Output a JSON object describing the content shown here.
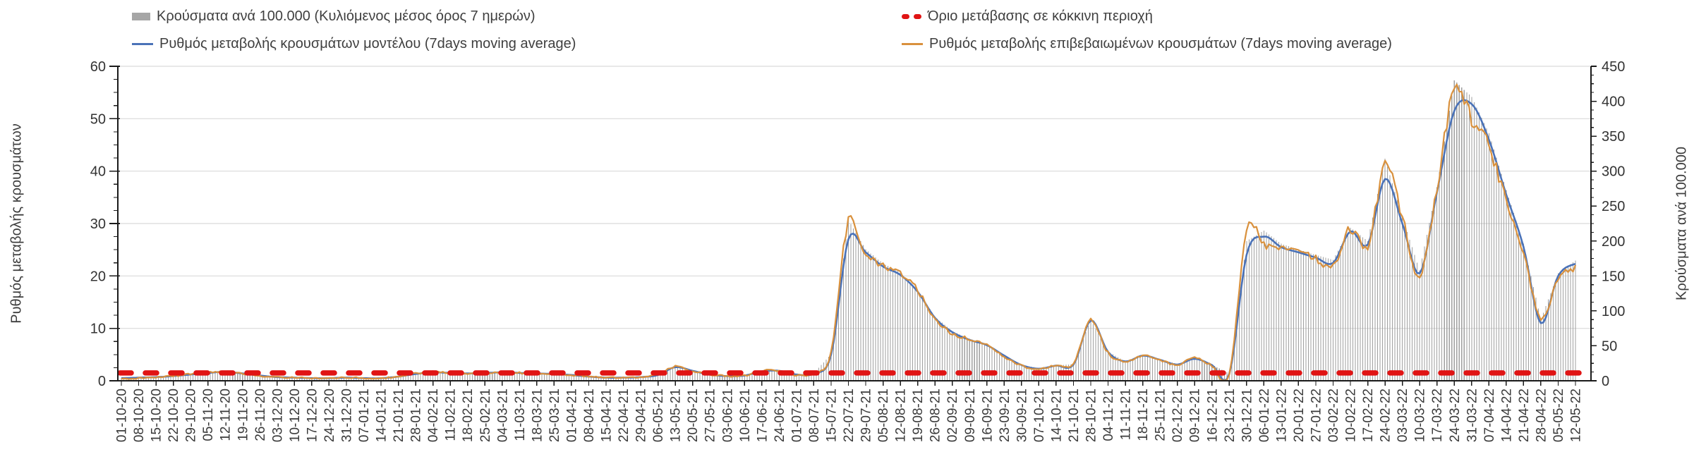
{
  "chart_data": {
    "type": "bar+line",
    "legend": [
      {
        "label": "Κρούσματα ανά 100.000 (Κυλιόμενος μέσος όρος 7 ημερών)",
        "swatch": "gray-bar",
        "color": "#a6a6a6"
      },
      {
        "label": "Όριο μετάβασης σε κόκκινη περιοχή",
        "swatch": "red-dashes",
        "color": "#e01414"
      },
      {
        "label": "Ρυθμός μεταβολής κρουσμάτων μοντέλου (7days moving average)",
        "swatch": "blue-line",
        "color": "#4a72b8"
      },
      {
        "label": "Ρυθμός μεταβολής επιβεβαιωμένων κρουσμάτων (7days moving average)",
        "swatch": "orange-line",
        "color": "#d9913d"
      }
    ],
    "ylabel_left": "Ρυθμός μεταβολής κρουσμάτων",
    "ylabel_right": "Κρούσματα ανά 100.000",
    "yleft_ticks": [
      0,
      10,
      20,
      30,
      40,
      50,
      60
    ],
    "yleft_range": [
      0,
      60
    ],
    "yright_ticks": [
      0,
      50,
      100,
      150,
      200,
      250,
      300,
      350,
      400,
      450
    ],
    "yright_range": [
      0,
      450
    ],
    "red_threshold": 1.5,
    "grid": true,
    "legend_position": "top",
    "colors": {
      "grid": "#d9d9d9",
      "bars": "#9f9f9f",
      "axis": "#1a1a1a",
      "tick_text": "#333333"
    },
    "categories": [
      "01-10-20",
      "08-10-20",
      "15-10-20",
      "22-10-20",
      "29-10-20",
      "05-11-20",
      "12-11-20",
      "19-11-20",
      "26-11-20",
      "03-12-20",
      "10-12-20",
      "17-12-20",
      "24-12-20",
      "31-12-20",
      "07-01-21",
      "14-01-21",
      "21-01-21",
      "28-01-21",
      "04-02-21",
      "11-02-21",
      "18-02-21",
      "25-02-21",
      "04-03-21",
      "11-03-21",
      "18-03-21",
      "25-03-21",
      "01-04-21",
      "08-04-21",
      "15-04-21",
      "22-04-21",
      "29-04-21",
      "06-05-21",
      "13-05-21",
      "20-05-21",
      "27-05-21",
      "03-06-21",
      "10-06-21",
      "17-06-21",
      "24-06-21",
      "01-07-21",
      "08-07-21",
      "15-07-21",
      "22-07-21",
      "29-07-21",
      "05-08-21",
      "12-08-21",
      "19-08-21",
      "26-08-21",
      "02-09-21",
      "09-09-21",
      "16-09-21",
      "23-09-21",
      "30-09-21",
      "07-10-21",
      "14-10-21",
      "21-10-21",
      "28-10-21",
      "04-11-21",
      "11-11-21",
      "18-11-21",
      "25-11-21",
      "02-12-21",
      "09-12-21",
      "16-12-21",
      "23-12-21",
      "30-12-21",
      "06-01-22",
      "13-01-22",
      "20-01-22",
      "27-01-22",
      "03-02-22",
      "10-02-22",
      "17-02-22",
      "24-02-22",
      "03-03-22",
      "10-03-22",
      "17-03-22",
      "24-03-22",
      "31-03-22",
      "07-04-22",
      "14-04-22",
      "21-04-22",
      "28-04-22",
      "05-05-22",
      "12-05-22"
    ],
    "series": [
      {
        "name": "incidence_per_100k",
        "axis": "right",
        "type": "bar",
        "values": [
          4,
          5,
          5,
          7,
          9,
          11,
          13,
          11,
          8,
          6,
          5,
          4,
          4,
          5,
          4,
          4,
          6,
          10,
          12,
          11,
          11,
          11,
          12,
          11,
          11,
          10,
          8,
          6,
          5,
          5,
          5,
          8,
          20,
          14,
          9,
          7,
          8,
          14,
          14,
          9,
          11,
          38,
          230,
          188,
          168,
          155,
          130,
          92,
          71,
          60,
          52,
          37,
          23,
          18,
          22,
          24,
          88,
          42,
          28,
          37,
          31,
          24,
          32,
          23,
          10,
          200,
          215,
          196,
          188,
          180,
          173,
          219,
          200,
          318,
          235,
          158,
          277,
          430,
          406,
          354,
          273,
          196,
          88,
          154,
          172
        ]
      },
      {
        "name": "model_rate",
        "axis": "left",
        "type": "line",
        "color": "#4a72b8",
        "values": [
          0.5,
          0.6,
          0.7,
          0.9,
          1.2,
          1.5,
          1.7,
          1.4,
          1.0,
          0.7,
          0.6,
          0.5,
          0.5,
          0.6,
          0.5,
          0.5,
          0.8,
          1.3,
          1.6,
          1.5,
          1.4,
          1.5,
          1.6,
          1.5,
          1.4,
          1.3,
          1.1,
          0.8,
          0.6,
          0.6,
          0.7,
          1.1,
          2.6,
          1.9,
          1.2,
          0.9,
          1.0,
          1.8,
          1.9,
          1.2,
          1.4,
          5.0,
          27.0,
          24.5,
          21.8,
          20.2,
          17.0,
          12.0,
          9.3,
          7.8,
          6.8,
          4.8,
          3.0,
          2.3,
          2.9,
          3.1,
          11.5,
          5.5,
          3.7,
          4.8,
          4.0,
          3.1,
          4.2,
          3.0,
          1.3,
          24.0,
          27.5,
          25.5,
          24.5,
          23.5,
          22.5,
          28.5,
          26.0,
          38.5,
          30.0,
          20.5,
          36.0,
          51.5,
          52.8,
          46.0,
          35.5,
          25.5,
          11.0,
          20.0,
          22.3
        ]
      },
      {
        "name": "confirmed_rate",
        "axis": "left",
        "type": "line",
        "color": "#d9913d",
        "values": [
          0.4,
          0.5,
          0.7,
          0.9,
          1.3,
          1.6,
          1.7,
          1.4,
          0.9,
          0.7,
          0.6,
          0.5,
          0.5,
          0.6,
          0.5,
          0.5,
          0.8,
          1.4,
          1.7,
          1.5,
          1.4,
          1.5,
          1.7,
          1.5,
          1.4,
          1.3,
          1.1,
          0.8,
          0.6,
          0.6,
          0.7,
          1.2,
          2.7,
          1.8,
          1.2,
          0.9,
          1.0,
          1.9,
          1.9,
          1.1,
          1.5,
          5.5,
          30.5,
          24.0,
          22.0,
          20.5,
          17.2,
          11.8,
          9.0,
          8.0,
          7.0,
          4.6,
          2.9,
          2.2,
          3.0,
          3.2,
          11.7,
          5.3,
          3.6,
          4.9,
          3.9,
          3.0,
          4.3,
          2.9,
          1.2,
          28.5,
          26.0,
          25.0,
          24.8,
          23.2,
          22.0,
          29.0,
          25.5,
          41.0,
          31.0,
          20.0,
          37.0,
          55.5,
          50.0,
          44.5,
          34.5,
          24.5,
          12.0,
          19.5,
          21.5
        ]
      }
    ]
  }
}
